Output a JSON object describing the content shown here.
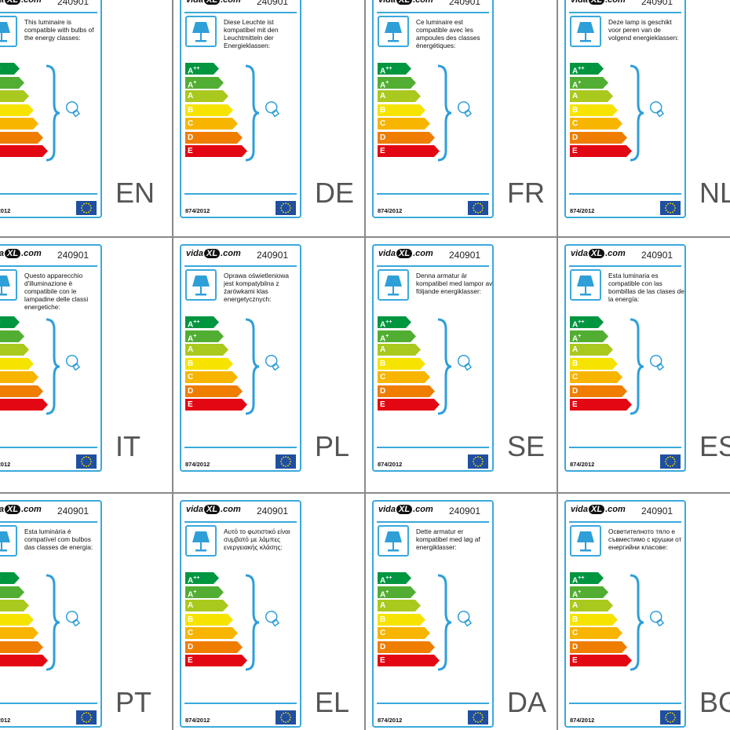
{
  "brand": {
    "prefix": "vida",
    "mark": "XL",
    "suffix": ".com"
  },
  "article_code": "240901",
  "regulation": "874/2012",
  "icons": {
    "lamp": "lamp-icon",
    "bulb": "bulb-icon",
    "flag": "eu-flag-icon"
  },
  "colors": {
    "frame": "#3aa9dc",
    "grid": "#8a8a8a"
  },
  "energy_classes": [
    {
      "letter": "A",
      "sup": "++",
      "color": "#009640"
    },
    {
      "letter": "A",
      "sup": "+",
      "color": "#52ae32"
    },
    {
      "letter": "A",
      "sup": "",
      "color": "#a9c91e"
    },
    {
      "letter": "B",
      "sup": "",
      "color": "#f6e400"
    },
    {
      "letter": "C",
      "sup": "",
      "color": "#f8b500"
    },
    {
      "letter": "D",
      "sup": "",
      "color": "#ee7d00"
    },
    {
      "letter": "E",
      "sup": "",
      "color": "#e30613"
    }
  ],
  "labels": [
    {
      "lang": "EN",
      "text": "This luminaire is compatible with bulbs of the energy classes:"
    },
    {
      "lang": "DE",
      "text": "Diese Leuchte ist kompatibel mit den Leuchtmitteln der Energieklassen:"
    },
    {
      "lang": "FR",
      "text": "Ce luminaire est compatible avec les ampoules des classes énergétiques:"
    },
    {
      "lang": "NL",
      "text": "Deze lamp is geschikt voor peren van de volgend energieklassen:"
    },
    {
      "lang": "IT",
      "text": "Questo apparecchio d'illuminazione è compatibile con le lampadine delle classi energetiche:"
    },
    {
      "lang": "PL",
      "text": "Oprawa oświetleniowa jest kompatybilna z żarówkami klas energetycznych:"
    },
    {
      "lang": "SE",
      "text": "Denna armatur är kompatibel med lampor av följande energiklasser:"
    },
    {
      "lang": "ES",
      "text": "Esta luminaria es compatible con las bombillas de las clases de la energía:"
    },
    {
      "lang": "PT",
      "text": "Esta luminária é compatível com bulbos das classes de energia:"
    },
    {
      "lang": "EL",
      "text": "Αυτό το φωτιστικό είναι συμβατό με λάμπες ενεργειακής κλάσης:"
    },
    {
      "lang": "DA",
      "text": "Dette armatur er kompatibel med løg af energiklasser:"
    },
    {
      "lang": "BG",
      "text": "Осветителното тяло е съвместимо с крушки от енергийни класове:"
    }
  ]
}
